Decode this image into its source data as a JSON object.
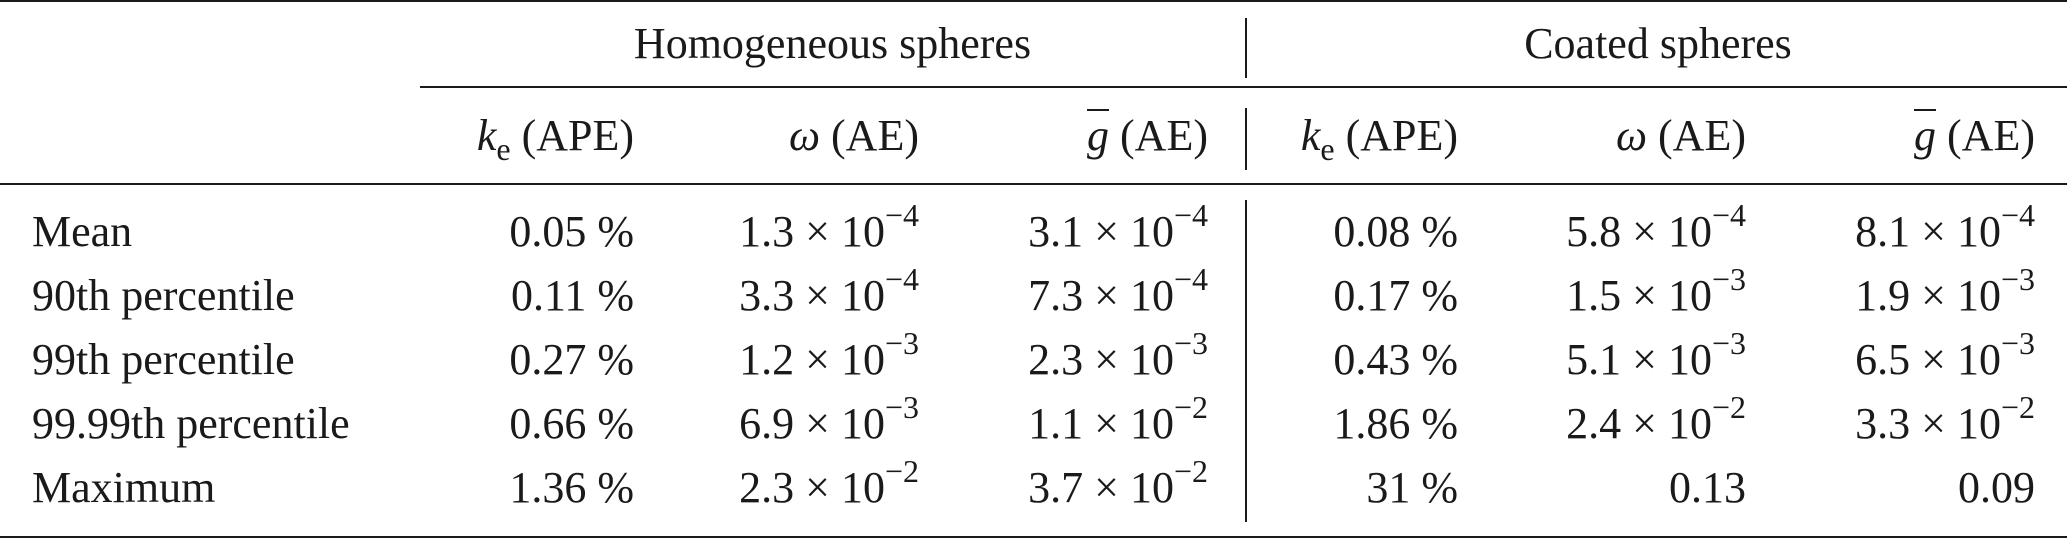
{
  "groups": {
    "left": "Homogeneous spheres",
    "right": "Coated spheres"
  },
  "columns": [
    {
      "symbol": "k",
      "subscript": "e",
      "suffix": " (APE)"
    },
    {
      "symbol": "ω",
      "subscript": "",
      "suffix": " (AE)"
    },
    {
      "symbol": "g",
      "subscript": "",
      "suffix": " (AE)"
    },
    {
      "symbol": "k",
      "subscript": "e",
      "suffix": " (APE)"
    },
    {
      "symbol": "ω",
      "subscript": "",
      "suffix": " (AE)"
    },
    {
      "symbol": "g",
      "subscript": "",
      "suffix": " (AE)"
    }
  ],
  "rows": [
    {
      "label": "Mean",
      "values": [
        "0.05 %",
        "1.3 × 10−4",
        "3.1 × 10−4",
        "0.08 %",
        "5.8 × 10−4",
        "8.1 × 10−4"
      ]
    },
    {
      "label": "90th percentile",
      "values": [
        "0.11 %",
        "3.3 × 10−4",
        "7.3 × 10−4",
        "0.17 %",
        "1.5 × 10−3",
        "1.9 × 10−3"
      ]
    },
    {
      "label": "99th percentile",
      "values": [
        "0.27 %",
        "1.2 × 10−3",
        "2.3 × 10−3",
        "0.43 %",
        "5.1 × 10−3",
        "6.5 × 10−3"
      ]
    },
    {
      "label": "99.99th percentile",
      "values": [
        "0.66 %",
        "6.9 × 10−3",
        "1.1 × 10−2",
        "1.86 %",
        "2.4 × 10−2",
        "3.3 × 10−2"
      ]
    },
    {
      "label": "Maximum",
      "values": [
        "1.36 %",
        "2.3 × 10−2",
        "3.7 × 10−2",
        "31 %",
        "0.13",
        "0.09"
      ]
    }
  ]
}
